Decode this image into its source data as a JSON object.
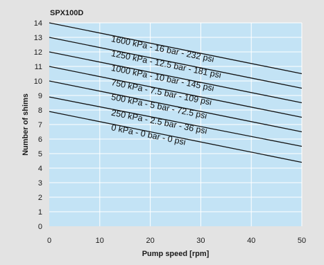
{
  "chart_data": {
    "type": "line",
    "title": "SPX100D",
    "xlabel": "Pump speed [rpm]",
    "ylabel": "Number of shims",
    "xlim": [
      0,
      50
    ],
    "ylim": [
      0,
      14
    ],
    "xticks": [
      "0",
      "10",
      "20",
      "30",
      "40",
      "50"
    ],
    "yticks": [
      "0",
      "1",
      "2",
      "3",
      "4",
      "5",
      "6",
      "7",
      "8",
      "9",
      "10",
      "11",
      "12",
      "13",
      "14"
    ],
    "grid": true,
    "legend": "inline labels along lines",
    "colors": {
      "plot_background": "#c3e3f5",
      "page_background": "#e3e3e3",
      "grid": "#ffffff",
      "line": "#111111"
    },
    "series": [
      {
        "name": "1600 kPa - 16 bar - 232 psi",
        "x": [
          0,
          50
        ],
        "y": [
          14.0,
          10.5
        ]
      },
      {
        "name": "1250 kPa - 12.5 bar - 181 psi",
        "x": [
          0,
          50
        ],
        "y": [
          13.0,
          9.5
        ]
      },
      {
        "name": "1000 kPa - 10 bar - 145 psi",
        "x": [
          0,
          50
        ],
        "y": [
          12.0,
          8.5
        ]
      },
      {
        "name": "750 kPa - 7.5 bar - 109 psi",
        "x": [
          0,
          50
        ],
        "y": [
          11.0,
          7.5
        ]
      },
      {
        "name": "500 kPa - 5 bar - 72.5 psi",
        "x": [
          0,
          50
        ],
        "y": [
          10.0,
          6.5
        ]
      },
      {
        "name": "250 kPa - 2.5 bar - 36 psi",
        "x": [
          0,
          50
        ],
        "y": [
          8.9,
          5.5
        ]
      },
      {
        "name": "0 kPa - 0 bar - 0 psi",
        "x": [
          0,
          50
        ],
        "y": [
          7.9,
          4.4
        ]
      }
    ]
  }
}
